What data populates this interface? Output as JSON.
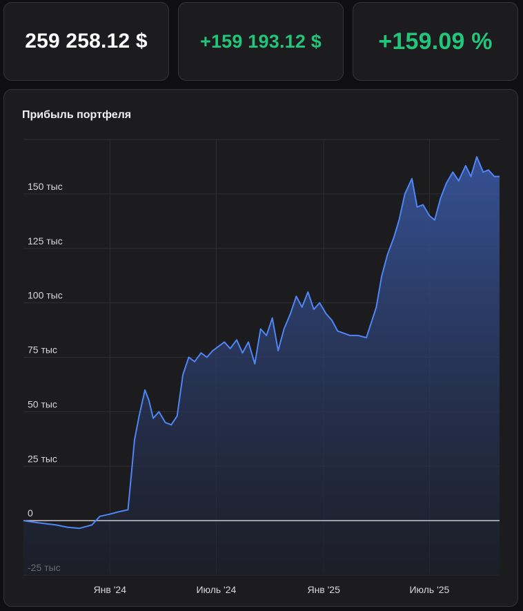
{
  "summary": {
    "total_value": "259 258.12 $",
    "profit_abs": "+159 193.12 $",
    "profit_pct": "+159.09 %"
  },
  "colors": {
    "background": "#0f0f12",
    "card": "#1c1c1f",
    "positive": "#22c57a",
    "line": "#4f86f7"
  },
  "chart_data": {
    "type": "area",
    "title": "Прибыль портфеля",
    "xlabel": "",
    "ylabel": "",
    "ylim": [
      -25000,
      175000
    ],
    "y_ticks": [
      -25000,
      0,
      25000,
      50000,
      75000,
      100000,
      125000,
      150000
    ],
    "y_tick_labels": [
      "-25 тыс",
      "0",
      "25 тыс",
      "50 тыс",
      "75 тыс",
      "100 тыс",
      "125 тыс",
      "150 тыс"
    ],
    "x_ticks": [
      "2024-01-01",
      "2024-07-01",
      "2025-01-01",
      "2025-07-01"
    ],
    "x_tick_labels": [
      "Янв '24",
      "Июль '24",
      "Янв '25",
      "Июль '25"
    ],
    "xlim": [
      "2023-08-06",
      "2025-10-29"
    ],
    "grid": true,
    "series": [
      {
        "x": [
          "2023-08-06",
          "2023-09-01",
          "2023-10-01",
          "2023-10-20",
          "2023-11-10",
          "2023-12-01",
          "2023-12-15",
          "2024-01-01",
          "2024-01-15",
          "2024-02-01",
          "2024-02-08",
          "2024-02-12",
          "2024-02-20",
          "2024-03-01",
          "2024-03-08",
          "2024-03-15",
          "2024-03-25",
          "2024-04-05",
          "2024-04-15",
          "2024-04-25",
          "2024-05-05",
          "2024-05-15",
          "2024-05-25",
          "2024-06-05",
          "2024-06-15",
          "2024-06-25",
          "2024-07-05",
          "2024-07-15",
          "2024-07-25",
          "2024-08-05",
          "2024-08-15",
          "2024-08-25",
          "2024-09-05",
          "2024-09-15",
          "2024-09-25",
          "2024-10-05",
          "2024-10-15",
          "2024-10-25",
          "2024-11-05",
          "2024-11-15",
          "2024-11-25",
          "2024-12-05",
          "2024-12-15",
          "2024-12-25",
          "2025-01-05",
          "2025-01-15",
          "2025-01-25",
          "2025-02-05",
          "2025-02-15",
          "2025-03-01",
          "2025-03-15",
          "2025-04-01",
          "2025-04-10",
          "2025-04-20",
          "2025-05-01",
          "2025-05-10",
          "2025-05-20",
          "2025-06-01",
          "2025-06-10",
          "2025-06-20",
          "2025-07-01",
          "2025-07-10",
          "2025-07-20",
          "2025-07-30",
          "2025-08-10",
          "2025-08-20",
          "2025-09-01",
          "2025-09-10",
          "2025-09-20",
          "2025-10-01",
          "2025-10-10",
          "2025-10-20",
          "2025-10-29"
        ],
        "y": [
          0,
          -1000,
          -2000,
          -3000,
          -3500,
          -2000,
          2000,
          3000,
          4000,
          5000,
          25000,
          37000,
          48000,
          60000,
          55000,
          47000,
          50000,
          45000,
          44000,
          48000,
          67000,
          75000,
          73000,
          77000,
          75000,
          78000,
          80000,
          82000,
          79000,
          83000,
          77000,
          82000,
          72000,
          88000,
          85000,
          93000,
          78000,
          88000,
          95000,
          103000,
          98000,
          105000,
          97000,
          100000,
          95000,
          92000,
          87000,
          86000,
          85000,
          85000,
          84000,
          98000,
          112000,
          122000,
          130000,
          138000,
          150000,
          157000,
          144000,
          145000,
          140000,
          138000,
          148000,
          155000,
          160000,
          156000,
          163000,
          158000,
          167000,
          160000,
          161000,
          158000,
          158000
        ]
      }
    ]
  }
}
